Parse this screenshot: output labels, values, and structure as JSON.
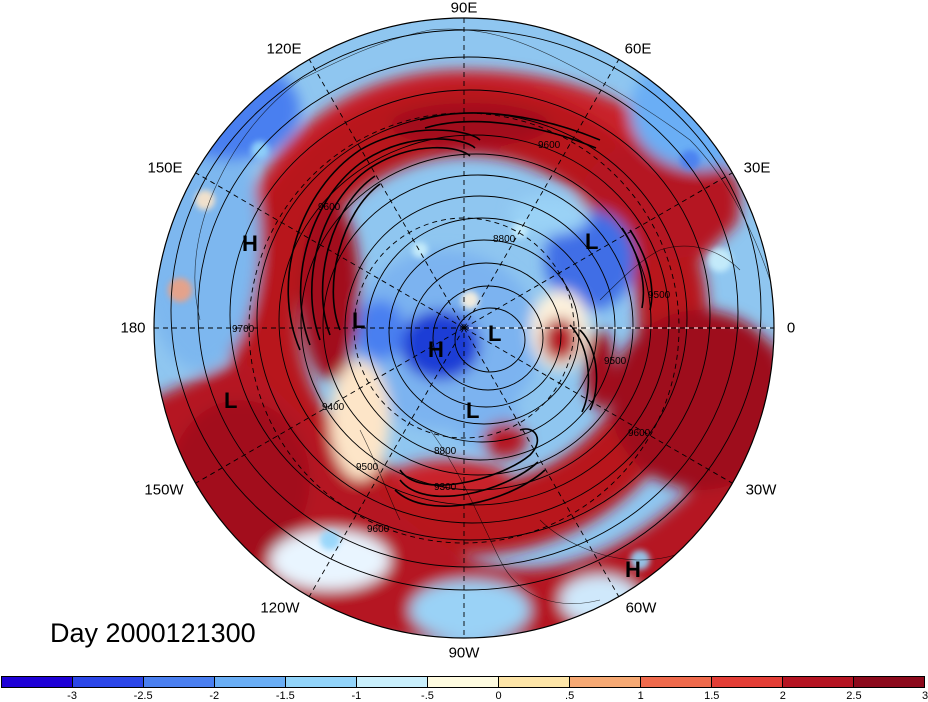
{
  "title": "Day 2000121300",
  "longitude_labels": {
    "e0": "0",
    "e30": "30E",
    "e60": "60E",
    "e90": "90E",
    "e120": "120E",
    "e150": "150E",
    "e180": "180",
    "w150": "150W",
    "w120": "120W",
    "w90": "90W",
    "w60": "60W",
    "w30": "30W"
  },
  "pressure_centers": [
    {
      "id": "h-west-pacific",
      "label": "H"
    },
    {
      "id": "l-east-siberia",
      "label": "L"
    },
    {
      "id": "h-arctic",
      "label": "H"
    },
    {
      "id": "l-arctic",
      "label": "L"
    },
    {
      "id": "l-hudson",
      "label": "L"
    },
    {
      "id": "l-europe",
      "label": "L"
    },
    {
      "id": "l-gulf-alaska",
      "label": "L"
    },
    {
      "id": "h-atlantic",
      "label": "H"
    }
  ],
  "contour_labels": {
    "c9600_n": "9600",
    "c9500_w": "9600",
    "c8800_n": "8800",
    "c9700_w": "9700",
    "c9400_w": "9400",
    "c9500_sw": "9500",
    "c9600_sw": "9600",
    "c8800_s": "8800",
    "c9300_s": "9300",
    "c9500_e": "9500",
    "c9600_e": "9600",
    "c9500_ne": "9500"
  },
  "colorbar": {
    "colors": [
      "#1e00d6",
      "#2b46e8",
      "#4a7ff0",
      "#6aaef5",
      "#92d4fa",
      "#c9effc",
      "#fefbe0",
      "#fde5a8",
      "#f6a974",
      "#ef6a4c",
      "#e33e36",
      "#b51422",
      "#8c0a1c"
    ],
    "labels": [
      "-3",
      "-2.5",
      "-2",
      "-1.5",
      "-1",
      "-.5",
      "0",
      ".5",
      "1",
      "1.5",
      "2",
      "2.5",
      "3"
    ]
  },
  "colors": {
    "strong_positive": "#a2101f",
    "positive": "#d83a36",
    "weak_positive": "#f6a974",
    "neutral": "#fdf2dd",
    "weak_negative": "#9ad2f6",
    "negative": "#4a7ff0",
    "strong_negative": "#1e1ed6"
  }
}
